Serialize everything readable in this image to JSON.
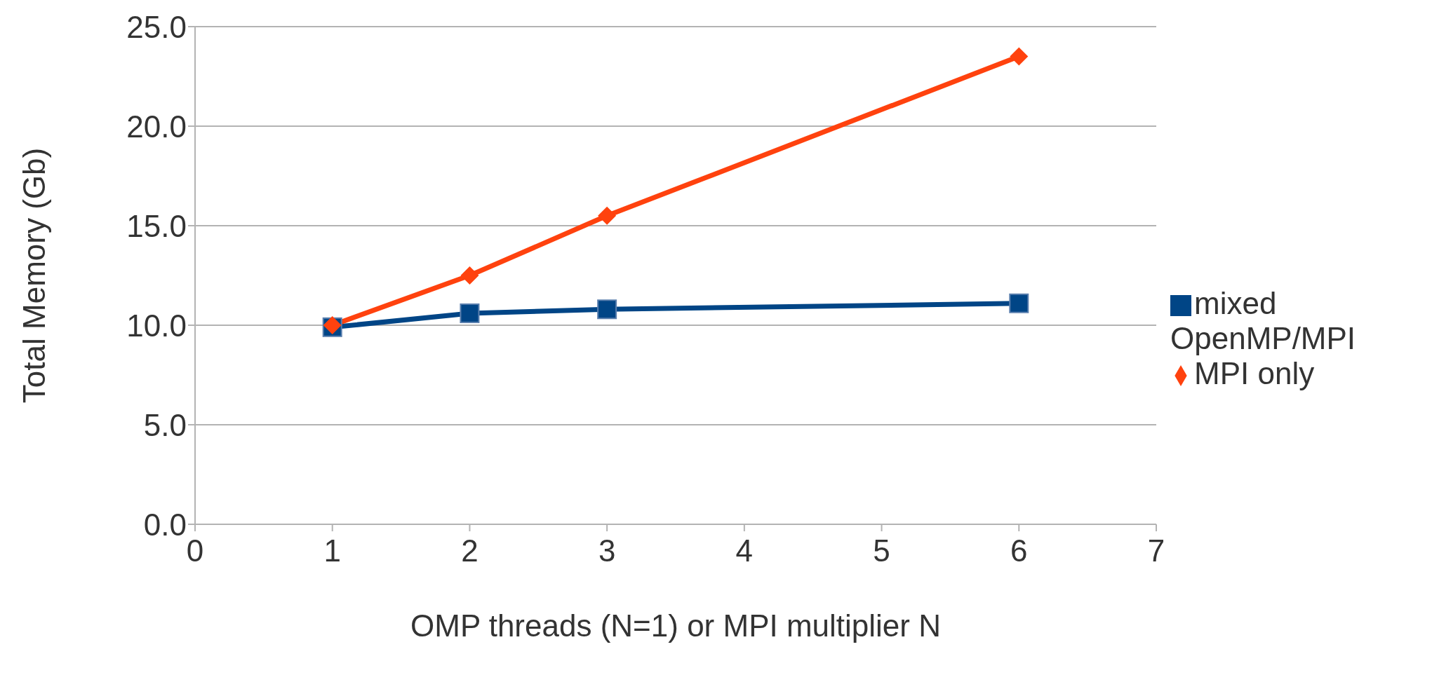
{
  "chart_data": {
    "type": "line",
    "xlabel": "OMP threads (N=1) or MPI multiplier N",
    "ylabel": "Total Memory (Gb)",
    "x": [
      1,
      2,
      3,
      6
    ],
    "series": [
      {
        "name": "mixed OpenMP/MPI",
        "color": "#004586",
        "values": [
          9.9,
          10.6,
          10.8,
          11.1
        ],
        "marker": "square"
      },
      {
        "name": "MPI only",
        "color": "#ff420e",
        "values": [
          10.0,
          12.5,
          15.5,
          23.5
        ],
        "marker": "diamond"
      }
    ],
    "xlim": [
      0,
      7
    ],
    "xticks": [
      0,
      1,
      2,
      3,
      4,
      5,
      6,
      7
    ],
    "ylim": [
      0,
      25
    ],
    "yticks": [
      {
        "value": 0,
        "label": "0.0"
      },
      {
        "value": 5,
        "label": "5.0"
      },
      {
        "value": 10,
        "label": "10.0"
      },
      {
        "value": 15,
        "label": "15.0"
      },
      {
        "value": 20,
        "label": "20.0"
      },
      {
        "value": 25,
        "label": "25.0"
      }
    ],
    "grid": "y",
    "legend": "right",
    "line_style": "solid"
  }
}
